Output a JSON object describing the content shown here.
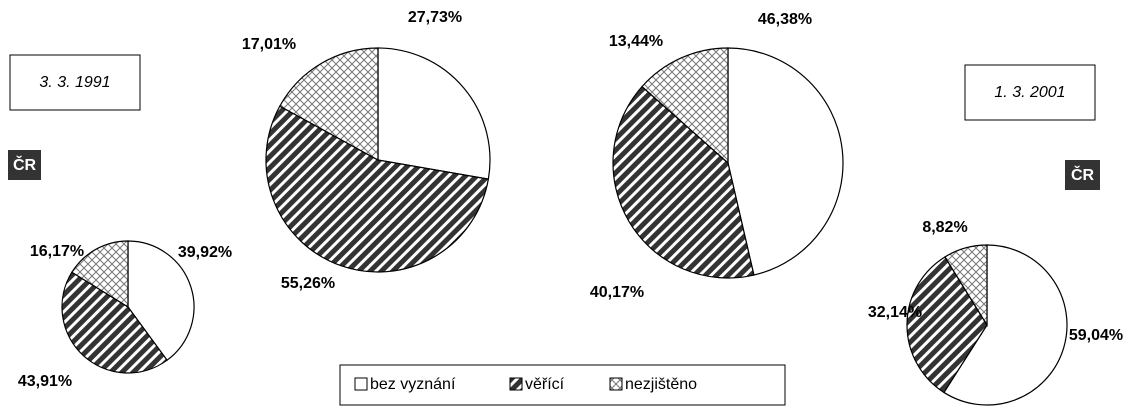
{
  "chart_data": [
    {
      "type": "pie",
      "title": "ČR",
      "subtitle": "3. 3. 1991",
      "categories": [
        "bez vyznání",
        "věřící",
        "nezjištěno"
      ],
      "values": [
        39.92,
        43.91,
        16.17
      ],
      "value_labels": [
        "39,92%",
        "43,91%",
        "16,17%"
      ]
    },
    {
      "type": "pie",
      "categories": [
        "bez vyznání",
        "věřící",
        "nezjištěno"
      ],
      "values": [
        27.73,
        55.26,
        17.01
      ],
      "value_labels": [
        "27,73%",
        "55,26%",
        "17,01%"
      ]
    },
    {
      "type": "pie",
      "categories": [
        "bez vyznání",
        "věřící",
        "nezjištěno"
      ],
      "values": [
        46.38,
        40.17,
        13.44
      ],
      "value_labels": [
        "46,38%",
        "40,17%",
        "13,44%"
      ]
    },
    {
      "type": "pie",
      "title": "ČR",
      "subtitle": "1. 3. 2001",
      "categories": [
        "bez vyznání",
        "věřící",
        "nezjištěno"
      ],
      "values": [
        59.04,
        32.14,
        8.82
      ],
      "value_labels": [
        "59,04%",
        "32,14%",
        "8,82%"
      ]
    }
  ]
}
